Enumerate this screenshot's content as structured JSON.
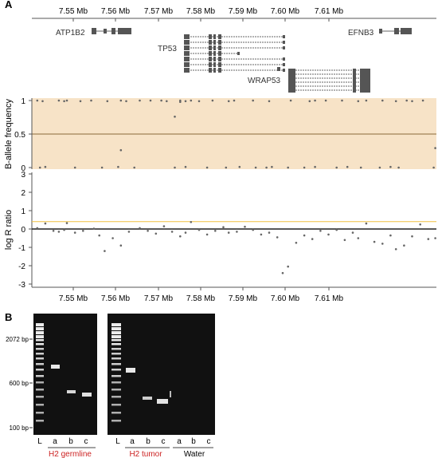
{
  "panel_a": {
    "label": "A",
    "coords": [
      "7.55 Mb",
      "7.56 Mb",
      "7.57 Mb",
      "7.58 Mb",
      "7.59 Mb",
      "7.60 Mb",
      "7.61 Mb"
    ],
    "genes": [
      "ATP1B2",
      "TP53",
      "EFNB3",
      "WRAP53"
    ]
  },
  "baf": {
    "ylabel": "B-allele frequency",
    "ticks": [
      "1",
      "0.5",
      "0"
    ],
    "band_color": "#f7e3c7"
  },
  "logr": {
    "ylabel": "log R ratio",
    "ticks": [
      "3",
      "2",
      "1",
      "0",
      "-1",
      "-2",
      "-3"
    ],
    "threshold_color": "#f0c040"
  },
  "panel_b": {
    "label": "B",
    "size_labels": [
      "2072 bp",
      "600 bp",
      "100 bp"
    ],
    "gel1_lanes": [
      "L",
      "a",
      "b",
      "c"
    ],
    "gel1_group": "H2 germline",
    "gel2_lanes": [
      "L",
      "a",
      "b",
      "c",
      "a",
      "b",
      "c"
    ],
    "gel2_group1": "H2 tumor",
    "gel2_group2": "Water",
    "group_color": "#cc2222"
  },
  "chart_data": [
    {
      "type": "scatter",
      "title": "",
      "xlabel": "",
      "ylabel": "B-allele frequency",
      "xlim": [
        7.543,
        7.618
      ],
      "ylim": [
        0,
        1
      ],
      "series": [
        {
          "x": [
            7.544,
            7.545,
            7.548,
            7.549,
            7.5495,
            7.552,
            7.554,
            7.557,
            7.5595,
            7.5605,
            7.563,
            7.565,
            7.567,
            7.568,
            7.5705,
            7.5715,
            7.5725,
            7.574,
            7.5765,
            7.5795,
            7.5805,
            7.584,
            7.587,
            7.591,
            7.5945,
            7.5955,
            7.5975,
            7.6005,
            7.6035,
            7.605,
            7.608,
            7.6105,
            7.6125,
            7.6135,
            7.6155,
            7.6185,
            7.5445,
            7.5455,
            7.551,
            7.556,
            7.559,
            7.562,
            7.5695,
            7.5715,
            7.5755,
            7.579,
            7.5815,
            7.5845,
            7.5865,
            7.5875,
            7.5905,
            7.5935,
            7.5955,
            7.5995,
            7.6015,
            7.604,
            7.6075,
            7.6095,
            7.611,
            7.6175,
            7.5695,
            7.5595,
            7.5705,
            7.6178
          ],
          "y": [
            1,
            0.99,
            1,
            0.99,
            1,
            0.99,
            1,
            0.99,
            1,
            0.99,
            1,
            1,
            1,
            0.99,
            1,
            0.99,
            1,
            0.99,
            1,
            0.99,
            1,
            1,
            0.99,
            1,
            0.99,
            1,
            1,
            1,
            0.99,
            1,
            1,
            0.99,
            1,
            0.99,
            1,
            1,
            0,
            0.01,
            0,
            0,
            0.01,
            0,
            0,
            0.01,
            0,
            0,
            0.01,
            0,
            0,
            0.01,
            0,
            0,
            0.01,
            0,
            0.01,
            0,
            0,
            0.01,
            0,
            0,
            0.76,
            0.26,
            0.98,
            0.29
          ]
        }
      ]
    },
    {
      "type": "scatter",
      "title": "",
      "xlabel": "",
      "ylabel": "log R ratio",
      "xlim": [
        7.543,
        7.618
      ],
      "ylim": [
        -3,
        3
      ],
      "hlines": [
        0,
        0.4
      ],
      "series": [
        {
          "x": [
            7.544,
            7.5455,
            7.547,
            7.548,
            7.549,
            7.5495,
            7.551,
            7.5525,
            7.5545,
            7.5555,
            7.5565,
            7.558,
            7.5595,
            7.561,
            7.563,
            7.5645,
            7.566,
            7.5675,
            7.569,
            7.5705,
            7.5715,
            7.5725,
            7.574,
            7.5755,
            7.577,
            7.5785,
            7.5795,
            7.581,
            7.5825,
            7.584,
            7.5855,
            7.587,
            7.5885,
            7.5895,
            7.5905,
            7.592,
            7.5935,
            7.595,
            7.5965,
            7.598,
            7.5995,
            7.601,
            7.6025,
            7.6035,
            7.605,
            7.6065,
            7.608,
            7.6095,
            7.6105,
            7.612,
            7.6135,
            7.615,
            7.6165,
            7.6178
          ],
          "y": [
            0.05,
            0.3,
            -0.1,
            -0.15,
            -0.05,
            0.32,
            -0.2,
            -0.1,
            0.02,
            -0.35,
            -1.2,
            -0.5,
            -0.9,
            -0.15,
            0.05,
            -0.1,
            -0.25,
            0.15,
            -0.15,
            -0.4,
            -0.2,
            0.38,
            -0.05,
            -0.3,
            -0.1,
            0.1,
            -0.2,
            -0.15,
            0.12,
            -0.05,
            -0.3,
            -0.2,
            -0.45,
            -2.4,
            -2.05,
            -0.75,
            -0.35,
            -0.55,
            -0.1,
            -0.3,
            -0.05,
            -0.6,
            -0.2,
            -0.5,
            0.3,
            -0.7,
            -0.8,
            -0.35,
            -1.1,
            -0.9,
            -0.4,
            0.25,
            -0.55,
            -0.5
          ]
        }
      ]
    }
  ]
}
